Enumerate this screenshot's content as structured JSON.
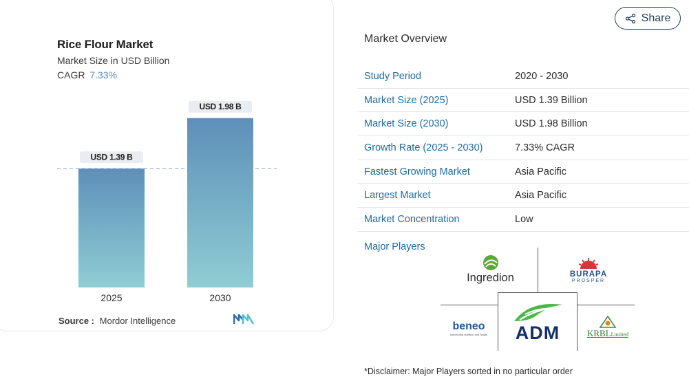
{
  "chart_data": {
    "type": "bar",
    "title": "Rice Flour Market",
    "subtitle": "Market Size in USD Billion",
    "cagr_label": "CAGR",
    "cagr_value": "7.33%",
    "categories": [
      "2025",
      "2030"
    ],
    "values": [
      1.39,
      1.98
    ],
    "data_labels": [
      "USD 1.39 B",
      "USD 1.98 B"
    ],
    "xlabel": "",
    "ylabel": "",
    "ylim": [
      0,
      2.05
    ],
    "grid": false,
    "reference_line": 1.39,
    "colors": {
      "bar_top": "#5e8fb9",
      "bar_bottom": "#8fcdd3",
      "label_bg": "#e9ecf0",
      "dash": "#98b6ce"
    }
  },
  "source": {
    "label": "Source :",
    "value": "Mordor Intelligence"
  },
  "share": {
    "label": "Share",
    "icon": "share-icon"
  },
  "overview": {
    "title": "Market Overview",
    "rows": [
      {
        "key": "Study Period",
        "value": "2020 - 2030"
      },
      {
        "key": "Market Size (2025)",
        "value": "USD 1.39 Billion"
      },
      {
        "key": "Market Size (2030)",
        "value": "USD 1.98 Billion"
      },
      {
        "key": "Growth Rate (2025 - 2030)",
        "value": "7.33% CAGR"
      },
      {
        "key": "Fastest Growing Market",
        "value": "Asia Pacific"
      },
      {
        "key": "Largest Market",
        "value": "Asia Pacific"
      },
      {
        "key": "Market Concentration",
        "value": "Low"
      }
    ],
    "players_label": "Major Players",
    "players": {
      "ingredion": "Ingredion",
      "burapa": "BURAPA",
      "burapa_sub": "PROSPER",
      "beneo": "beneo",
      "beneo_tag": "connecting nutrition and health",
      "adm": "ADM",
      "krbl": "KRBL",
      "krbl_suffix": "Limited"
    },
    "disclaimer": "*Disclaimer: Major Players sorted in no particular order"
  }
}
